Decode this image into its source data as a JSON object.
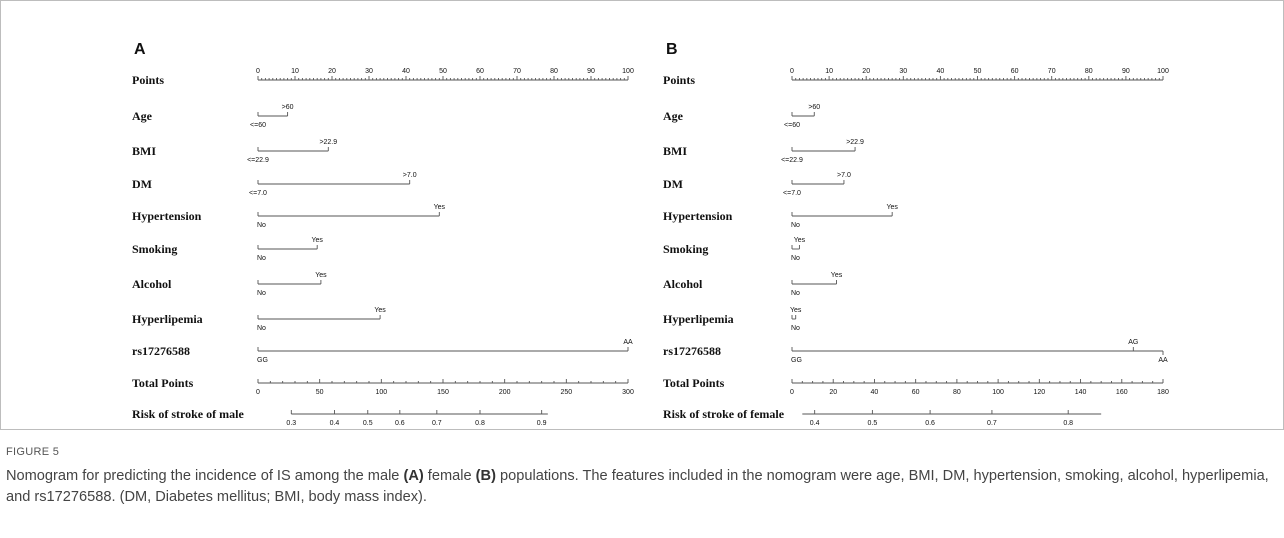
{
  "figure": {
    "label": "FIGURE 5",
    "caption_pre": "Nomogram for predicting the incidence of IS among the male ",
    "caption_a": "(A)",
    "caption_mid": " female ",
    "caption_b": "(B)",
    "caption_post": " populations. The features included in the nomogram were age, BMI, DM, hypertension, smoking, alcohol, hyperlipemia, and rs17276588. (DM, Diabetes mellitus; BMI, body mass index)."
  },
  "colors": {
    "line": "#555555",
    "text": "#111111",
    "frame": "#bdbdbd"
  },
  "chart_data": [
    {
      "type": "nomogram",
      "panel": "A",
      "points_axis": {
        "name": "Points",
        "ticks": [
          0,
          10,
          20,
          30,
          40,
          50,
          60,
          70,
          80,
          90,
          100
        ]
      },
      "variables": [
        {
          "name": "Age",
          "levels": [
            {
              "label": "<=60",
              "points": 0
            },
            {
              "label": ">60",
              "points": 8
            }
          ]
        },
        {
          "name": "BMI",
          "levels": [
            {
              "label": "<=22.9",
              "points": 0
            },
            {
              "label": ">22.9",
              "points": 19
            }
          ]
        },
        {
          "name": "DM",
          "levels": [
            {
              "label": "<=7.0",
              "points": 0
            },
            {
              "label": ">7.0",
              "points": 41
            }
          ]
        },
        {
          "name": "Hypertension",
          "levels": [
            {
              "label": "No",
              "points": 0
            },
            {
              "label": "Yes",
              "points": 49
            }
          ]
        },
        {
          "name": "Smoking",
          "levels": [
            {
              "label": "No",
              "points": 0
            },
            {
              "label": "Yes",
              "points": 16
            }
          ]
        },
        {
          "name": "Alcohol",
          "levels": [
            {
              "label": "No",
              "points": 0
            },
            {
              "label": "Yes",
              "points": 17
            }
          ]
        },
        {
          "name": "Hyperlipemia",
          "levels": [
            {
              "label": "No",
              "points": 0
            },
            {
              "label": "Yes",
              "points": 33
            }
          ]
        },
        {
          "name": "rs17276588",
          "levels": [
            {
              "label": "GG",
              "points": 0
            },
            {
              "label": "AA",
              "points": 100
            }
          ]
        }
      ],
      "total_points_axis": {
        "name": "Total Points",
        "range": [
          0,
          300
        ],
        "ticks": [
          0,
          50,
          100,
          150,
          200,
          250,
          300
        ]
      },
      "risk_axis": {
        "name": "Risk of stroke of male",
        "ticks": [
          {
            "label": "0.3",
            "total": 27
          },
          {
            "label": "0.4",
            "total": 62
          },
          {
            "label": "0.5",
            "total": 89
          },
          {
            "label": "0.6",
            "total": 115
          },
          {
            "label": "0.7",
            "total": 145
          },
          {
            "label": "0.8",
            "total": 180
          },
          {
            "label": "0.9",
            "total": 230
          }
        ],
        "line_range": [
          27,
          235
        ]
      }
    },
    {
      "type": "nomogram",
      "panel": "B",
      "points_axis": {
        "name": "Points",
        "ticks": [
          0,
          10,
          20,
          30,
          40,
          50,
          60,
          70,
          80,
          90,
          100
        ]
      },
      "variables": [
        {
          "name": "Age",
          "levels": [
            {
              "label": "<=60",
              "points": 0
            },
            {
              "label": ">60",
              "points": 6
            }
          ]
        },
        {
          "name": "BMI",
          "levels": [
            {
              "label": "<=22.9",
              "points": 0
            },
            {
              "label": ">22.9",
              "points": 17
            }
          ]
        },
        {
          "name": "DM",
          "levels": [
            {
              "label": "<=7.0",
              "points": 0
            },
            {
              "label": ">7.0",
              "points": 14
            }
          ]
        },
        {
          "name": "Hypertension",
          "levels": [
            {
              "label": "No",
              "points": 0
            },
            {
              "label": "Yes",
              "points": 27
            }
          ]
        },
        {
          "name": "Smoking",
          "levels": [
            {
              "label": "No",
              "points": 0
            },
            {
              "label": "Yes",
              "points": 2
            }
          ]
        },
        {
          "name": "Alcohol",
          "levels": [
            {
              "label": "No",
              "points": 0
            },
            {
              "label": "Yes",
              "points": 12
            }
          ]
        },
        {
          "name": "Hyperlipemia",
          "levels": [
            {
              "label": "No",
              "points": 0
            },
            {
              "label": "Yes",
              "points": 1
            }
          ]
        },
        {
          "name": "rs17276588",
          "levels": [
            {
              "label": "GG",
              "points": 0
            },
            {
              "label": "AG",
              "points": 92
            },
            {
              "label": "AA",
              "points": 100
            }
          ]
        }
      ],
      "total_points_axis": {
        "name": "Total Points",
        "range": [
          0,
          180
        ],
        "ticks": [
          0,
          20,
          40,
          60,
          80,
          100,
          120,
          140,
          160,
          180
        ]
      },
      "risk_axis": {
        "name": "Risk of stroke of female",
        "ticks": [
          {
            "label": "0.4",
            "total": 11
          },
          {
            "label": "0.5",
            "total": 39
          },
          {
            "label": "0.6",
            "total": 67
          },
          {
            "label": "0.7",
            "total": 97
          },
          {
            "label": "0.8",
            "total": 134
          }
        ],
        "line_range": [
          5,
          150
        ]
      }
    }
  ]
}
